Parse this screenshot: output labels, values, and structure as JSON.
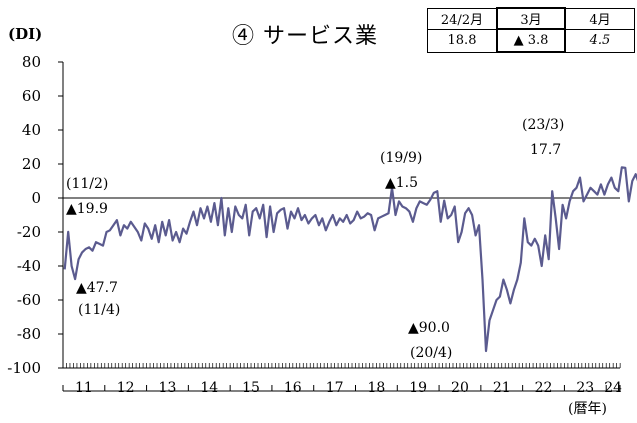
{
  "title": "④ サービス業",
  "unit_label": "(DI)",
  "xlabel": "(暦年)",
  "recent_table": {
    "headers": [
      "24/2月",
      "3月",
      "4月"
    ],
    "values": [
      "18.8",
      "▲ 3.8",
      "4.5"
    ]
  },
  "annotations": [
    {
      "text": "(11/2)",
      "sub": "▲19.9"
    },
    {
      "text": "▲47.7",
      "sub": "(11/4)"
    },
    {
      "text": "(19/9)",
      "sub": "▲1.5"
    },
    {
      "text": "▲90.0",
      "sub": "(20/4)"
    },
    {
      "text": "(23/3)",
      "sub": "17.7"
    }
  ],
  "chart_data": {
    "type": "line",
    "title": "④ サービス業",
    "ylabel": "(DI)",
    "xlabel": "(暦年)",
    "ylim": [
      -100,
      80
    ],
    "yticks": [
      80,
      60,
      40,
      20,
      0,
      -20,
      -40,
      -60,
      -80,
      -100
    ],
    "xlim": [
      2011,
      2024.33
    ],
    "x_categories": [
      "11",
      "12",
      "13",
      "14",
      "15",
      "16",
      "17",
      "18",
      "19",
      "20",
      "21",
      "22",
      "23",
      "24"
    ],
    "series": [
      {
        "color": "#5b5b8f",
        "start": "2011-01",
        "frequency": "monthly",
        "values": [
          -42,
          -19.9,
          -40,
          -47.7,
          -36,
          -32,
          -30,
          -29,
          -31,
          -26,
          -27,
          -28,
          -20,
          -19,
          -16,
          -13,
          -22,
          -16,
          -18,
          -14,
          -17,
          -20,
          -25,
          -15,
          -18,
          -24,
          -16,
          -26,
          -14,
          -22,
          -13,
          -25,
          -20,
          -26,
          -18,
          -21,
          -14,
          -8,
          -16,
          -6,
          -12,
          -5,
          -14,
          -3,
          -16,
          0,
          -22,
          -6,
          -20,
          -5,
          -10,
          -12,
          -4,
          -22,
          -8,
          -6,
          -12,
          -4,
          -23,
          -5,
          -20,
          -9,
          -7,
          -6,
          -18,
          -8,
          -12,
          -6,
          -13,
          -10,
          -15,
          -12,
          -10,
          -16,
          -12,
          -19,
          -14,
          -10,
          -16,
          -12,
          -14,
          -10,
          -15,
          -13,
          -8,
          -12,
          -11,
          -9,
          -10,
          -19,
          -12,
          -11,
          -10,
          -9,
          6,
          -10,
          -2,
          -5,
          -6,
          -8,
          -14,
          -6,
          -2,
          -3,
          -4,
          -1,
          3,
          4,
          -14,
          -1.5,
          -12,
          -10,
          -5,
          -26,
          -20,
          -9,
          -6,
          -10,
          -22,
          -16,
          -48,
          -90,
          -72,
          -66,
          -60,
          -58,
          -48,
          -54,
          -62,
          -54,
          -48,
          -38,
          -12,
          -26,
          -28,
          -24,
          -28,
          -40,
          -22,
          -36,
          4,
          -12,
          -30,
          -4,
          -12,
          -2,
          4,
          6,
          12,
          -2,
          2,
          6,
          4,
          2,
          8,
          2,
          8,
          12,
          6,
          4,
          18,
          17.7,
          -2,
          10,
          14,
          8,
          2,
          16,
          8,
          4,
          6,
          2,
          10,
          6,
          -4,
          18.8,
          -3.8,
          4.5
        ]
      }
    ]
  }
}
